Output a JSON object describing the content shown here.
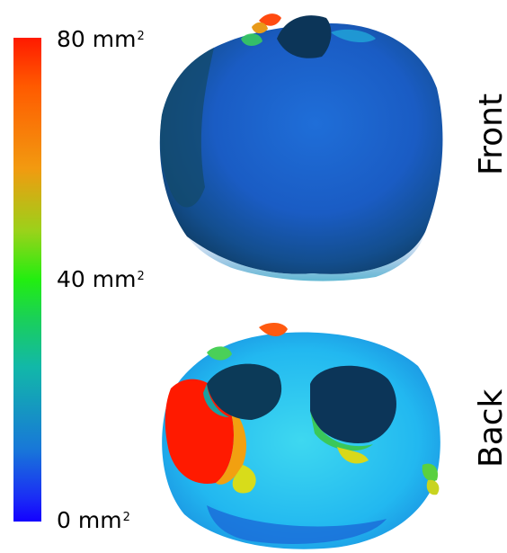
{
  "colorbar": {
    "max_label": "80 mm",
    "mid_label": "40 mm",
    "min_label": "0 mm",
    "unit_superscript": "2",
    "range": [
      0,
      80
    ],
    "colors": [
      "#1400ff",
      "#1878d8",
      "#12b8a8",
      "#22ee10",
      "#f29a10",
      "#ff1a00"
    ]
  },
  "views": {
    "front_label": "Front",
    "back_label": "Back"
  }
}
